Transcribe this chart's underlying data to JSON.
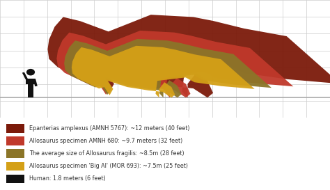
{
  "background_color": "#ffffff",
  "grid_color": "#cccccc",
  "ground_color": "#aaaaaa",
  "legend_items": [
    {
      "label": "Epanterias amplexus (AMNH 5767): ~12 meters (40 feet)",
      "color": "#7b1a0a"
    },
    {
      "label": "Allosaurus specimen AMNH 680: ~9.7 meters (32 feet)",
      "color": "#c0392b"
    },
    {
      "label": "The average size of Allosaurus fragilis: ~8.5m (28 feet)",
      "color": "#8b7528"
    },
    {
      "label": "Allosaurus specimen 'Big Al' (MOR 693): ~7.5m (25 feet)",
      "color": "#d4a017"
    },
    {
      "label": "Human: 1.8 meters (6 feet)",
      "color": "#111111"
    }
  ],
  "dino_colors": [
    "#7b1a0a",
    "#c0392b",
    "#8b7528",
    "#d4a017"
  ],
  "human_color": "#111111",
  "sizes_m": [
    12.0,
    9.7,
    8.5,
    7.5,
    1.8
  ]
}
